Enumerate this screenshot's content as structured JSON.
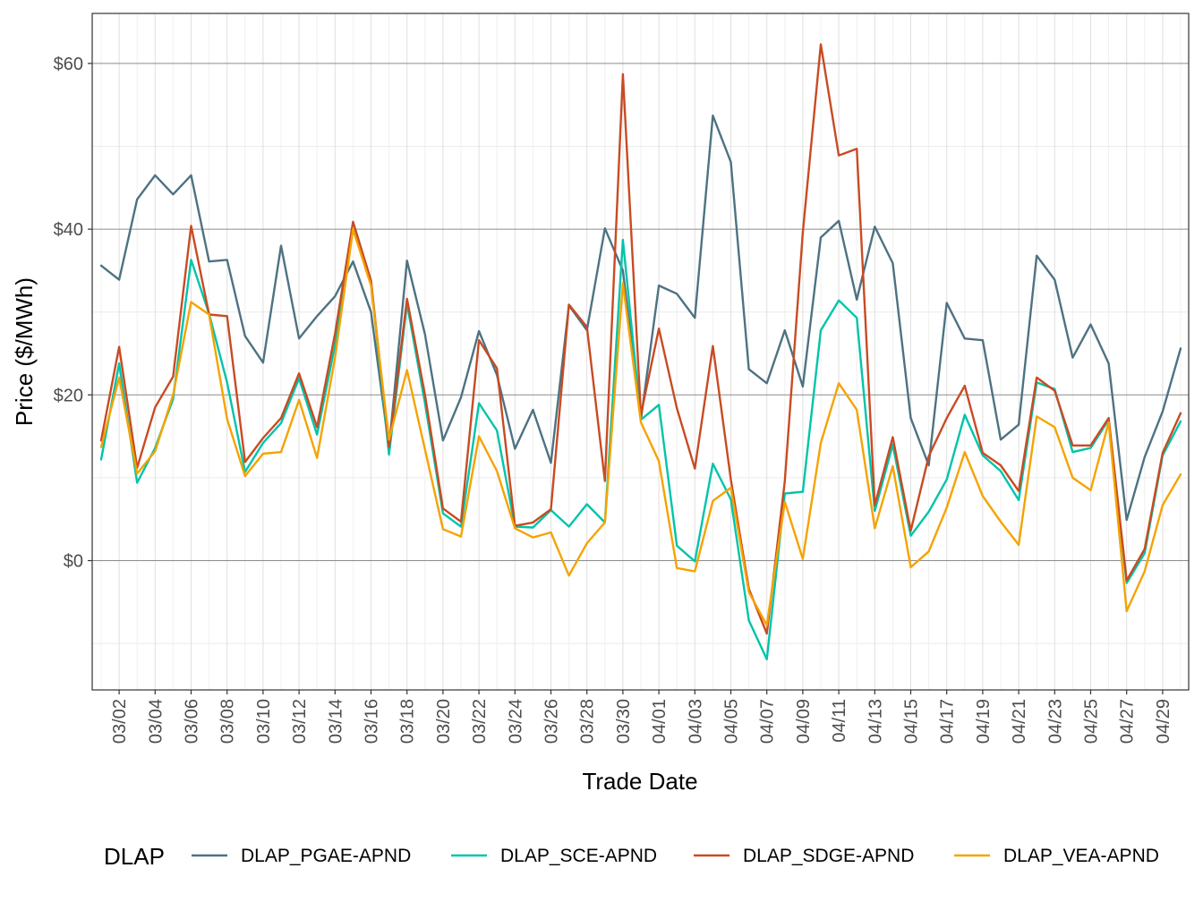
{
  "chart_data": {
    "type": "line",
    "title": "",
    "xlabel": "Trade Date",
    "ylabel": "Price ($/MWh)",
    "x_start": "03/01",
    "x_tick_labels": [
      "03/02",
      "03/04",
      "03/06",
      "03/08",
      "03/10",
      "03/12",
      "03/14",
      "03/16",
      "03/18",
      "03/20",
      "03/22",
      "03/24",
      "03/26",
      "03/28",
      "03/30",
      "04/01",
      "04/03",
      "04/05",
      "04/07",
      "04/09",
      "04/11",
      "04/13",
      "04/15",
      "04/17",
      "04/19",
      "04/21",
      "04/23",
      "04/25",
      "04/27",
      "04/29"
    ],
    "y_ticks": [
      0,
      20,
      40,
      60
    ],
    "y_tick_labels": [
      "$0",
      "$20",
      "$40",
      "$60"
    ],
    "ylim": [
      -15.5,
      66
    ],
    "grid": true,
    "legend": {
      "title": "DLAP",
      "position": "bottom"
    },
    "series": [
      {
        "name": "DLAP_PGAE-APND",
        "color": "#4e7282",
        "values": [
          35.6,
          33.9,
          43.6,
          46.5,
          44.2,
          46.5,
          36.1,
          36.3,
          27.1,
          23.9,
          38.0,
          26.8,
          29.5,
          31.9,
          36.1,
          30.0,
          13.6,
          36.2,
          27.3,
          14.5,
          19.7,
          27.7,
          22.4,
          13.5,
          18.2,
          11.8,
          30.8,
          27.8,
          40.1,
          35.0,
          17.0,
          33.2,
          32.2,
          29.3,
          53.7,
          48.1,
          23.1,
          21.4,
          27.8,
          21.0,
          39.0,
          41.0,
          31.5,
          40.3,
          35.9,
          17.2,
          11.5,
          31.1,
          26.8,
          26.6,
          14.6,
          16.4,
          36.8,
          33.9,
          24.5,
          28.5,
          23.8,
          4.9,
          12.5,
          18.0,
          25.6
        ]
      },
      {
        "name": "DLAP_SCE-APND",
        "color": "#00c4aa",
        "values": [
          12.2,
          23.8,
          9.4,
          13.6,
          19.5,
          36.3,
          29.8,
          21.5,
          10.7,
          14.2,
          16.6,
          22.0,
          15.2,
          26.0,
          40.0,
          33.6,
          12.8,
          31.0,
          19.0,
          5.7,
          4.1,
          19.0,
          15.7,
          4.1,
          4.0,
          6.1,
          4.1,
          6.8,
          4.6,
          38.7,
          17.0,
          18.8,
          1.8,
          -0.1,
          11.7,
          7.4,
          -7.2,
          -11.9,
          8.1,
          8.3,
          27.8,
          31.4,
          29.3,
          6.0,
          14.0,
          3.0,
          5.9,
          9.8,
          17.6,
          12.7,
          10.8,
          7.3,
          21.5,
          20.7,
          13.1,
          13.6,
          17.0,
          -2.7,
          0.9,
          12.7,
          16.8
        ]
      },
      {
        "name": "DLAP_SDGE-APND",
        "color": "#c84b23",
        "values": [
          14.5,
          25.8,
          11.2,
          18.5,
          22.2,
          40.4,
          29.7,
          29.5,
          11.9,
          14.8,
          17.2,
          22.6,
          16.1,
          27.4,
          40.9,
          33.8,
          13.7,
          31.6,
          20.0,
          6.3,
          4.7,
          26.6,
          23.2,
          4.2,
          4.6,
          6.2,
          30.9,
          28.2,
          9.6,
          58.7,
          17.6,
          28.0,
          18.4,
          11.1,
          25.9,
          9.8,
          -3.4,
          -8.8,
          9.6,
          39.6,
          62.3,
          48.9,
          49.7,
          6.7,
          14.9,
          3.6,
          12.6,
          17.2,
          21.1,
          13.0,
          11.5,
          8.4,
          22.1,
          20.5,
          13.9,
          13.9,
          17.2,
          -2.4,
          1.4,
          13.0,
          17.8
        ]
      },
      {
        "name": "DLAP_VEA-APND",
        "color": "#f5a300",
        "values": [
          13.7,
          22.1,
          10.5,
          13.2,
          20.0,
          31.2,
          29.7,
          17.1,
          10.2,
          12.9,
          13.1,
          19.4,
          12.4,
          24.5,
          40.0,
          33.2,
          14.6,
          23.0,
          13.4,
          3.8,
          2.9,
          15.0,
          10.8,
          3.9,
          2.8,
          3.4,
          -1.8,
          2.1,
          4.6,
          33.5,
          16.7,
          12.0,
          -0.9,
          -1.3,
          7.2,
          8.8,
          -3.8,
          -7.8,
          7.1,
          0.2,
          14.2,
          21.4,
          18.2,
          3.9,
          11.4,
          -0.8,
          1.1,
          6.4,
          13.1,
          7.8,
          4.7,
          1.9,
          17.4,
          16.1,
          10.0,
          8.5,
          16.7,
          -6.1,
          -1.3,
          6.7,
          10.4
        ]
      }
    ]
  }
}
